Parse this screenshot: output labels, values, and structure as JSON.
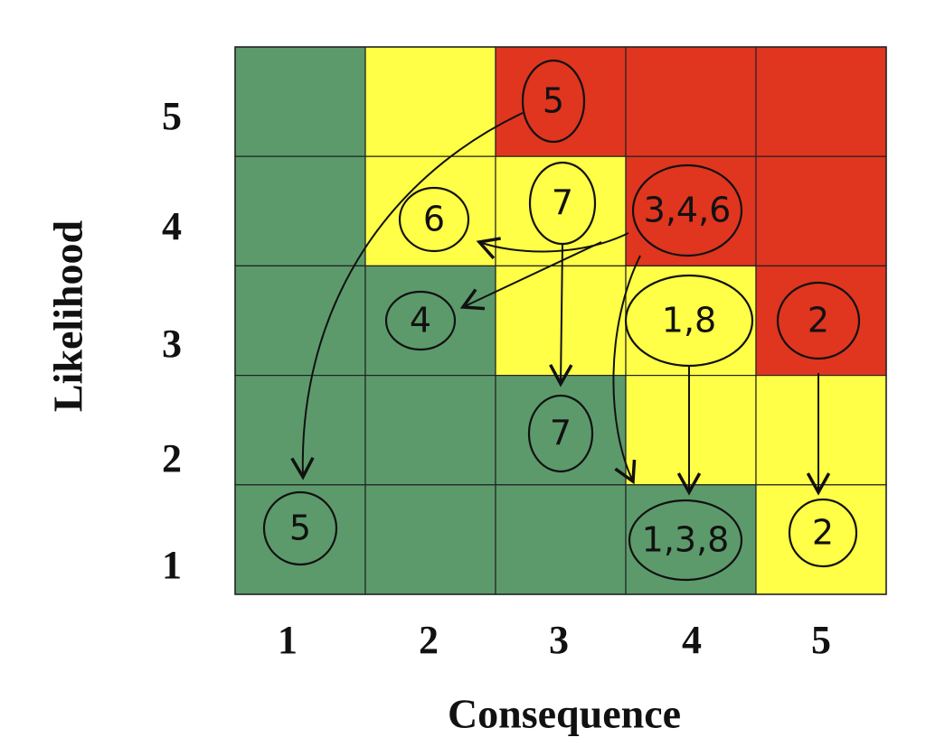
{
  "x_axis": {
    "title": "Consequence",
    "ticks": [
      "1",
      "2",
      "3",
      "4",
      "5"
    ]
  },
  "y_axis": {
    "title": "Likelihood",
    "ticks": [
      "1",
      "2",
      "3",
      "4",
      "5"
    ]
  },
  "annotations": [
    "5",
    "6",
    "7",
    "3,4,6",
    "4",
    "1,8",
    "2",
    "7",
    "5",
    "1,3,8",
    "2"
  ]
}
